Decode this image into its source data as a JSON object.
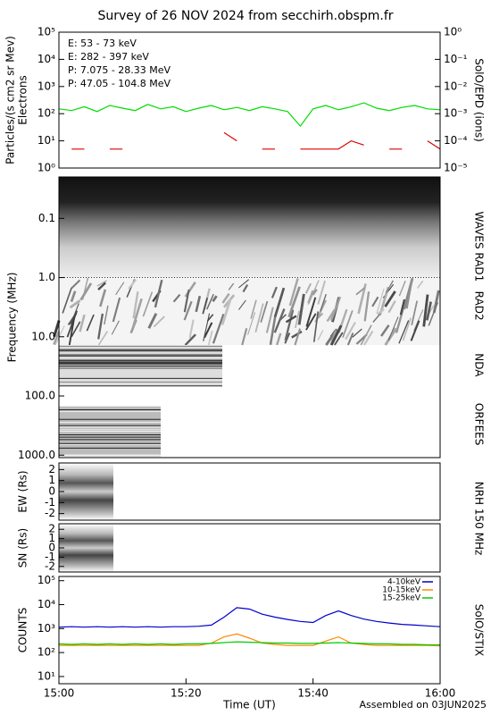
{
  "title": "Survey of 26 NOV 2024 from secchirh.obspm.fr",
  "footer": "Assembled on 03JUN2025",
  "chart_data": [
    {
      "type": "line",
      "log_scale": true,
      "y_label": [
        "Particles/(s cm2 sr Mev)",
        "Electrons"
      ],
      "y2_label": "SolO/EPD (ions)",
      "x": [
        "15:00",
        "15:02",
        "15:04",
        "15:06",
        "15:08",
        "15:10",
        "15:12",
        "15:14",
        "15:16",
        "15:18",
        "15:20",
        "15:22",
        "15:24",
        "15:26",
        "15:28",
        "15:30",
        "15:32",
        "15:34",
        "15:36",
        "15:38",
        "15:40",
        "15:42",
        "15:44",
        "15:46",
        "15:48",
        "15:50",
        "15:52",
        "15:54",
        "15:56",
        "15:58",
        "16:00"
      ],
      "xlim": [
        "15:00",
        "16:00"
      ],
      "ylim": [
        1,
        100000
      ],
      "yticks": [
        {
          "value": 1,
          "label": "10⁰"
        },
        {
          "value": 10,
          "label": "10¹"
        },
        {
          "value": 100,
          "label": "10²"
        },
        {
          "value": 1000,
          "label": "10³"
        },
        {
          "value": 10000,
          "label": "10⁴"
        },
        {
          "value": 100000,
          "label": "10⁵"
        }
      ],
      "y2lim": [
        1e-05,
        1
      ],
      "y2ticks": [
        {
          "value": 1e-05,
          "label": "10⁻⁵"
        },
        {
          "value": 0.0001,
          "label": "10⁻⁴"
        },
        {
          "value": 0.001,
          "label": "10⁻³"
        },
        {
          "value": 0.01,
          "label": "10⁻²"
        },
        {
          "value": 0.1,
          "label": "10⁻¹"
        },
        {
          "value": 1,
          "label": "10⁰"
        }
      ],
      "series": [
        {
          "name": "E: 53 - 73 keV",
          "color": "#00dd00",
          "values": [
            150,
            130,
            180,
            120,
            200,
            160,
            130,
            220,
            150,
            180,
            120,
            160,
            200,
            140,
            170,
            130,
            180,
            150,
            120,
            35,
            150,
            200,
            140,
            180,
            250,
            160,
            130,
            170,
            200,
            150,
            140
          ]
        },
        {
          "name": "E: 282 - 397 keV",
          "color": "#dd0000",
          "values": [
            null,
            5,
            5,
            null,
            5,
            5,
            null,
            null,
            null,
            null,
            null,
            null,
            null,
            20,
            10,
            null,
            5,
            5,
            null,
            5,
            5,
            5,
            5,
            10,
            7,
            null,
            5,
            5,
            null,
            10,
            5
          ]
        },
        {
          "name": "P: 7.075 - 28.33 MeV",
          "color": "#000000",
          "axis": "y2",
          "values": [
            null,
            null,
            null,
            null,
            null,
            null,
            null,
            null,
            null,
            null,
            null,
            null,
            null,
            null,
            null,
            null,
            null,
            null,
            null,
            null,
            null,
            null,
            null,
            null,
            null,
            null,
            null,
            null,
            null,
            null,
            null
          ]
        },
        {
          "name": "P: 47.05 - 104.8 MeV",
          "color": "#0000cc",
          "axis": "y2",
          "values": [
            null,
            null,
            null,
            null,
            null,
            null,
            null,
            null,
            null,
            null,
            null,
            null,
            null,
            null,
            null,
            null,
            null,
            null,
            null,
            null,
            null,
            null,
            null,
            null,
            null,
            null,
            null,
            null,
            null,
            null,
            null
          ]
        }
      ]
    },
    {
      "type": "spectrogram",
      "log_scale": true,
      "y_label": "Frequency (MHz)",
      "ylim": [
        0.02,
        1100
      ],
      "yticks": [
        0.1,
        {
          "value": 1,
          "label": "1.0"
        },
        {
          "value": 10,
          "label": "10.0"
        },
        {
          "value": 100,
          "label": "100.0"
        },
        {
          "value": 1000,
          "label": "1000.0"
        }
      ],
      "instruments": [
        "WAVES RAD1",
        "RAD2",
        "NDA",
        "ORFEES"
      ]
    },
    {
      "type": "image",
      "y_label": "EW (Rs)",
      "ylim": [
        -2.6,
        2.6
      ],
      "yticks": [
        2,
        1,
        0,
        -1,
        -2
      ]
    },
    {
      "type": "image",
      "y_label": "SN (Rs)",
      "ylim": [
        -2.6,
        2.6
      ],
      "yticks": [
        2,
        1,
        0,
        -1,
        -2
      ],
      "side_label": "NRH 150 MHz"
    },
    {
      "type": "line",
      "log_scale": true,
      "y_label": "COUNTS",
      "y2_label": "SolO/STIX",
      "x_label": "Time (UT)",
      "x": [
        "15:00",
        "15:02",
        "15:04",
        "15:06",
        "15:08",
        "15:10",
        "15:12",
        "15:14",
        "15:16",
        "15:18",
        "15:20",
        "15:22",
        "15:24",
        "15:26",
        "15:28",
        "15:30",
        "15:32",
        "15:34",
        "15:36",
        "15:38",
        "15:40",
        "15:42",
        "15:44",
        "15:46",
        "15:48",
        "15:50",
        "15:52",
        "15:54",
        "15:56",
        "15:58",
        "16:00"
      ],
      "xlim": [
        "15:00",
        "16:00"
      ],
      "xticks": [
        "15:00",
        "15:20",
        "15:40",
        "16:00"
      ],
      "ylim": [
        5,
        150000
      ],
      "yticks": [
        {
          "value": 10,
          "label": "10¹"
        },
        {
          "value": 100,
          "label": "10²"
        },
        {
          "value": 1000,
          "label": "10³"
        },
        {
          "value": 10000,
          "label": "10⁴"
        },
        {
          "value": 100000,
          "label": "10⁵"
        }
      ],
      "series": [
        {
          "name": "4-10keV",
          "color": "#0000cc",
          "values": [
            1150,
            1200,
            1150,
            1200,
            1150,
            1200,
            1150,
            1200,
            1150,
            1200,
            1200,
            1250,
            1400,
            3000,
            7500,
            6500,
            4000,
            3000,
            2400,
            2000,
            1800,
            3500,
            5500,
            3500,
            2500,
            2000,
            1700,
            1500,
            1400,
            1300,
            1200
          ]
        },
        {
          "name": "10-15keV",
          "color": "#ff8800",
          "values": [
            200,
            200,
            200,
            200,
            200,
            200,
            200,
            200,
            200,
            200,
            200,
            200,
            250,
            450,
            600,
            400,
            250,
            220,
            200,
            200,
            200,
            300,
            450,
            250,
            220,
            200,
            200,
            200,
            200,
            200,
            190
          ]
        },
        {
          "name": "15-25keV",
          "color": "#00cc00",
          "values": [
            230,
            220,
            230,
            220,
            230,
            220,
            230,
            220,
            230,
            220,
            230,
            230,
            240,
            260,
            280,
            270,
            260,
            250,
            250,
            240,
            240,
            250,
            260,
            250,
            240,
            230,
            230,
            220,
            220,
            210,
            210
          ]
        }
      ]
    }
  ]
}
